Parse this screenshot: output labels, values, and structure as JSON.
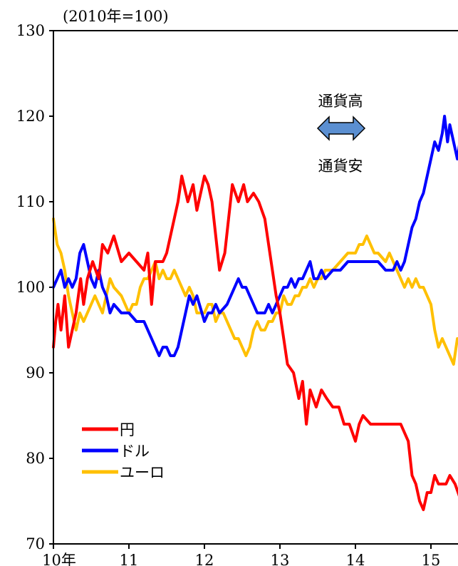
{
  "chart_data": {
    "type": "line",
    "unit_label": "(2010年=100)",
    "ylim": [
      70,
      130
    ],
    "y_ticks": [
      "70",
      "80",
      "90",
      "100",
      "110",
      "120",
      "130"
    ],
    "x_ticks": [
      "10年",
      "11",
      "12",
      "13",
      "14",
      "15"
    ],
    "xlim": [
      2010,
      2015.4
    ],
    "grid": false,
    "legend_position": "bottom-left",
    "annotation": {
      "up": "通貨高",
      "down": "通貨安",
      "arrow_color": "#5b8fd1"
    },
    "series": [
      {
        "name": "円",
        "color": "#ff0000",
        "points": [
          [
            2010.0,
            93
          ],
          [
            2010.03,
            96
          ],
          [
            2010.06,
            98
          ],
          [
            2010.1,
            95
          ],
          [
            2010.15,
            99
          ],
          [
            2010.2,
            93
          ],
          [
            2010.25,
            95
          ],
          [
            2010.3,
            97
          ],
          [
            2010.36,
            101
          ],
          [
            2010.4,
            98
          ],
          [
            2010.45,
            101
          ],
          [
            2010.52,
            103
          ],
          [
            2010.6,
            101
          ],
          [
            2010.65,
            105
          ],
          [
            2010.72,
            104
          ],
          [
            2010.8,
            106
          ],
          [
            2010.9,
            103
          ],
          [
            2011.0,
            104
          ],
          [
            2011.1,
            103
          ],
          [
            2011.2,
            102
          ],
          [
            2011.25,
            104
          ],
          [
            2011.3,
            98
          ],
          [
            2011.35,
            103
          ],
          [
            2011.45,
            103
          ],
          [
            2011.5,
            104
          ],
          [
            2011.55,
            106
          ],
          [
            2011.6,
            108
          ],
          [
            2011.65,
            110
          ],
          [
            2011.7,
            113
          ],
          [
            2011.78,
            110
          ],
          [
            2011.85,
            112
          ],
          [
            2011.9,
            109
          ],
          [
            2012.0,
            113
          ],
          [
            2012.05,
            112
          ],
          [
            2012.1,
            110
          ],
          [
            2012.15,
            106
          ],
          [
            2012.2,
            102
          ],
          [
            2012.27,
            104
          ],
          [
            2012.32,
            108
          ],
          [
            2012.37,
            112
          ],
          [
            2012.45,
            110
          ],
          [
            2012.52,
            112
          ],
          [
            2012.57,
            110
          ],
          [
            2012.65,
            111
          ],
          [
            2012.72,
            110
          ],
          [
            2012.8,
            108
          ],
          [
            2012.85,
            105
          ],
          [
            2012.9,
            102
          ],
          [
            2012.95,
            99
          ],
          [
            2013.0,
            97
          ],
          [
            2013.05,
            94
          ],
          [
            2013.1,
            91
          ],
          [
            2013.18,
            90
          ],
          [
            2013.25,
            87
          ],
          [
            2013.3,
            89
          ],
          [
            2013.35,
            84
          ],
          [
            2013.4,
            88
          ],
          [
            2013.48,
            86
          ],
          [
            2013.55,
            88
          ],
          [
            2013.62,
            87
          ],
          [
            2013.7,
            86
          ],
          [
            2013.78,
            86
          ],
          [
            2013.85,
            84
          ],
          [
            2013.92,
            84
          ],
          [
            2014.0,
            82
          ],
          [
            2014.05,
            84
          ],
          [
            2014.1,
            85
          ],
          [
            2014.2,
            84
          ],
          [
            2014.3,
            84
          ],
          [
            2014.4,
            84
          ],
          [
            2014.5,
            84
          ],
          [
            2014.6,
            84
          ],
          [
            2014.65,
            83
          ],
          [
            2014.7,
            82
          ],
          [
            2014.75,
            78
          ],
          [
            2014.8,
            77
          ],
          [
            2014.85,
            75
          ],
          [
            2014.9,
            74
          ],
          [
            2014.95,
            76
          ],
          [
            2015.0,
            76
          ],
          [
            2015.05,
            78
          ],
          [
            2015.1,
            77
          ],
          [
            2015.15,
            77
          ],
          [
            2015.2,
            77
          ],
          [
            2015.25,
            78
          ],
          [
            2015.32,
            77
          ],
          [
            2015.4,
            75
          ]
        ]
      },
      {
        "name": "ドル",
        "color": "#0000ff",
        "points": [
          [
            2010.0,
            100
          ],
          [
            2010.05,
            101
          ],
          [
            2010.1,
            102
          ],
          [
            2010.15,
            100
          ],
          [
            2010.2,
            101
          ],
          [
            2010.25,
            100
          ],
          [
            2010.3,
            101
          ],
          [
            2010.35,
            104
          ],
          [
            2010.4,
            105
          ],
          [
            2010.45,
            103
          ],
          [
            2010.5,
            101
          ],
          [
            2010.55,
            100
          ],
          [
            2010.6,
            102
          ],
          [
            2010.65,
            100
          ],
          [
            2010.7,
            99
          ],
          [
            2010.75,
            97
          ],
          [
            2010.8,
            98
          ],
          [
            2010.9,
            97
          ],
          [
            2011.0,
            97
          ],
          [
            2011.1,
            96
          ],
          [
            2011.2,
            96
          ],
          [
            2011.25,
            95
          ],
          [
            2011.3,
            94
          ],
          [
            2011.35,
            93
          ],
          [
            2011.4,
            92
          ],
          [
            2011.45,
            93
          ],
          [
            2011.5,
            93
          ],
          [
            2011.55,
            92
          ],
          [
            2011.6,
            92
          ],
          [
            2011.65,
            93
          ],
          [
            2011.7,
            95
          ],
          [
            2011.75,
            97
          ],
          [
            2011.8,
            99
          ],
          [
            2011.85,
            98
          ],
          [
            2011.9,
            99
          ],
          [
            2012.0,
            96
          ],
          [
            2012.05,
            97
          ],
          [
            2012.1,
            97
          ],
          [
            2012.15,
            98
          ],
          [
            2012.2,
            97
          ],
          [
            2012.3,
            98
          ],
          [
            2012.4,
            100
          ],
          [
            2012.45,
            101
          ],
          [
            2012.5,
            100
          ],
          [
            2012.55,
            100
          ],
          [
            2012.6,
            99
          ],
          [
            2012.65,
            98
          ],
          [
            2012.7,
            97
          ],
          [
            2012.75,
            97
          ],
          [
            2012.8,
            97
          ],
          [
            2012.85,
            98
          ],
          [
            2012.9,
            97
          ],
          [
            2012.95,
            98
          ],
          [
            2013.0,
            99
          ],
          [
            2013.05,
            100
          ],
          [
            2013.1,
            100
          ],
          [
            2013.15,
            101
          ],
          [
            2013.2,
            100
          ],
          [
            2013.25,
            101
          ],
          [
            2013.3,
            101
          ],
          [
            2013.35,
            102
          ],
          [
            2013.4,
            103
          ],
          [
            2013.45,
            101
          ],
          [
            2013.5,
            101
          ],
          [
            2013.55,
            102
          ],
          [
            2013.6,
            101
          ],
          [
            2013.7,
            102
          ],
          [
            2013.8,
            102
          ],
          [
            2013.9,
            103
          ],
          [
            2014.0,
            103
          ],
          [
            2014.1,
            103
          ],
          [
            2014.2,
            103
          ],
          [
            2014.3,
            103
          ],
          [
            2014.4,
            102
          ],
          [
            2014.5,
            102
          ],
          [
            2014.55,
            103
          ],
          [
            2014.6,
            102
          ],
          [
            2014.65,
            103
          ],
          [
            2014.7,
            105
          ],
          [
            2014.75,
            107
          ],
          [
            2014.8,
            108
          ],
          [
            2014.85,
            110
          ],
          [
            2014.9,
            111
          ],
          [
            2014.95,
            113
          ],
          [
            2015.0,
            115
          ],
          [
            2015.05,
            117
          ],
          [
            2015.1,
            116
          ],
          [
            2015.15,
            118
          ],
          [
            2015.18,
            120
          ],
          [
            2015.22,
            117
          ],
          [
            2015.25,
            119
          ],
          [
            2015.3,
            117
          ],
          [
            2015.35,
            115
          ],
          [
            2015.4,
            118
          ]
        ]
      },
      {
        "name": "ユーロ",
        "color": "#ffc000",
        "points": [
          [
            2010.0,
            108
          ],
          [
            2010.05,
            105
          ],
          [
            2010.1,
            104
          ],
          [
            2010.15,
            102
          ],
          [
            2010.2,
            99
          ],
          [
            2010.25,
            97
          ],
          [
            2010.3,
            95
          ],
          [
            2010.35,
            97
          ],
          [
            2010.4,
            96
          ],
          [
            2010.45,
            97
          ],
          [
            2010.5,
            98
          ],
          [
            2010.55,
            99
          ],
          [
            2010.6,
            98
          ],
          [
            2010.65,
            97
          ],
          [
            2010.7,
            99
          ],
          [
            2010.75,
            101
          ],
          [
            2010.8,
            100
          ],
          [
            2010.9,
            99
          ],
          [
            2011.0,
            97
          ],
          [
            2011.05,
            98
          ],
          [
            2011.1,
            98
          ],
          [
            2011.15,
            100
          ],
          [
            2011.2,
            101
          ],
          [
            2011.25,
            101
          ],
          [
            2011.3,
            102
          ],
          [
            2011.35,
            103
          ],
          [
            2011.4,
            101
          ],
          [
            2011.45,
            102
          ],
          [
            2011.5,
            101
          ],
          [
            2011.55,
            101
          ],
          [
            2011.6,
            102
          ],
          [
            2011.65,
            101
          ],
          [
            2011.7,
            100
          ],
          [
            2011.75,
            99
          ],
          [
            2011.8,
            100
          ],
          [
            2011.85,
            99
          ],
          [
            2011.9,
            97
          ],
          [
            2012.0,
            97
          ],
          [
            2012.05,
            98
          ],
          [
            2012.1,
            98
          ],
          [
            2012.15,
            96
          ],
          [
            2012.2,
            97
          ],
          [
            2012.25,
            97
          ],
          [
            2012.3,
            96
          ],
          [
            2012.35,
            95
          ],
          [
            2012.4,
            94
          ],
          [
            2012.45,
            94
          ],
          [
            2012.5,
            93
          ],
          [
            2012.55,
            92
          ],
          [
            2012.6,
            93
          ],
          [
            2012.65,
            95
          ],
          [
            2012.7,
            96
          ],
          [
            2012.75,
            95
          ],
          [
            2012.8,
            95
          ],
          [
            2012.85,
            96
          ],
          [
            2012.9,
            96
          ],
          [
            2012.95,
            97
          ],
          [
            2013.0,
            97
          ],
          [
            2013.05,
            99
          ],
          [
            2013.1,
            98
          ],
          [
            2013.15,
            98
          ],
          [
            2013.2,
            99
          ],
          [
            2013.25,
            99
          ],
          [
            2013.3,
            100
          ],
          [
            2013.35,
            100
          ],
          [
            2013.4,
            101
          ],
          [
            2013.45,
            100
          ],
          [
            2013.5,
            101
          ],
          [
            2013.55,
            101
          ],
          [
            2013.6,
            102
          ],
          [
            2013.7,
            102
          ],
          [
            2013.8,
            103
          ],
          [
            2013.9,
            104
          ],
          [
            2014.0,
            104
          ],
          [
            2014.05,
            105
          ],
          [
            2014.1,
            105
          ],
          [
            2014.15,
            106
          ],
          [
            2014.2,
            105
          ],
          [
            2014.25,
            104
          ],
          [
            2014.3,
            104
          ],
          [
            2014.4,
            103
          ],
          [
            2014.45,
            104
          ],
          [
            2014.5,
            103
          ],
          [
            2014.55,
            102
          ],
          [
            2014.6,
            101
          ],
          [
            2014.65,
            100
          ],
          [
            2014.7,
            101
          ],
          [
            2014.75,
            100
          ],
          [
            2014.8,
            101
          ],
          [
            2014.85,
            100
          ],
          [
            2014.9,
            100
          ],
          [
            2014.95,
            99
          ],
          [
            2015.0,
            98
          ],
          [
            2015.05,
            95
          ],
          [
            2015.1,
            93
          ],
          [
            2015.15,
            94
          ],
          [
            2015.2,
            93
          ],
          [
            2015.25,
            92
          ],
          [
            2015.3,
            91
          ],
          [
            2015.35,
            94
          ],
          [
            2015.4,
            93
          ]
        ]
      }
    ]
  }
}
